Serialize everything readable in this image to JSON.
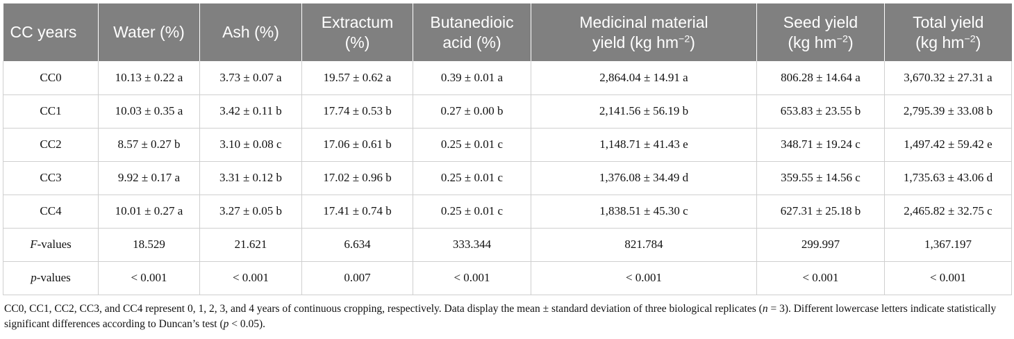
{
  "table": {
    "headers": [
      {
        "main": "CC years"
      },
      {
        "main": "Water (%)"
      },
      {
        "main": "Ash (%)"
      },
      {
        "main": "Extractum",
        "line2": "(%)"
      },
      {
        "main": "Butanedioic",
        "line2": "acid (%)"
      },
      {
        "main": "Medicinal material",
        "line2": "yield (kg hm",
        "sup": "−2",
        "tail": ")"
      },
      {
        "main": "Seed yield",
        "line2": "(kg hm",
        "sup": "−2",
        "tail": ")"
      },
      {
        "main": "Total yield",
        "line2": "(kg hm",
        "sup": "−2",
        "tail": ")"
      }
    ],
    "rows": [
      [
        "CC0",
        "10.13 ± 0.22 a",
        "3.73 ± 0.07 a",
        "19.57 ± 0.62 a",
        "0.39 ± 0.01 a",
        "2,864.04 ± 14.91 a",
        "806.28 ± 14.64 a",
        "3,670.32 ± 27.31 a"
      ],
      [
        "CC1",
        "10.03 ± 0.35 a",
        "3.42 ± 0.11 b",
        "17.74 ± 0.53 b",
        "0.27 ± 0.00 b",
        "2,141.56 ± 56.19 b",
        "653.83 ± 23.55 b",
        "2,795.39 ± 33.08 b"
      ],
      [
        "CC2",
        "8.57 ± 0.27 b",
        "3.10 ± 0.08 c",
        "17.06 ± 0.61 b",
        "0.25 ± 0.01 c",
        "1,148.71 ± 41.43 e",
        "348.71 ± 19.24 c",
        "1,497.42 ± 59.42 e"
      ],
      [
        "CC3",
        "9.92 ± 0.17 a",
        "3.31 ± 0.12 b",
        "17.02 ± 0.96 b",
        "0.25 ± 0.01 c",
        "1,376.08 ± 34.49 d",
        "359.55 ± 14.56 c",
        "1,735.63 ± 43.06 d"
      ],
      [
        "CC4",
        "10.01 ± 0.27 a",
        "3.27 ± 0.05 b",
        "17.41 ± 0.74 b",
        "0.25 ± 0.01 c",
        "1,838.51 ± 45.30 c",
        "627.31 ± 25.18 b",
        "2,465.82 ± 32.75 c"
      ]
    ],
    "fvalues": {
      "label_italic": "F",
      "label_rest": "-values",
      "values": [
        "18.529",
        "21.621",
        "6.634",
        "333.344",
        "821.784",
        "299.997",
        "1,367.197"
      ]
    },
    "pvalues": {
      "label_italic": "p",
      "label_rest": "-values",
      "values": [
        "< 0.001",
        "< 0.001",
        "0.007",
        "< 0.001",
        "< 0.001",
        "< 0.001",
        "< 0.001"
      ]
    }
  },
  "footnote": {
    "part1": "CC0, CC1, CC2, CC3, and CC4 represent 0, 1, 2, 3, and 4 years of continuous cropping, respectively. Data display the mean ± standard deviation of three biological replicates (",
    "n": "n",
    "part2": " = 3). Different lowercase letters indicate statistically significant differences according to Duncan’s test (",
    "p": "p",
    "part3": " < 0.05)."
  }
}
